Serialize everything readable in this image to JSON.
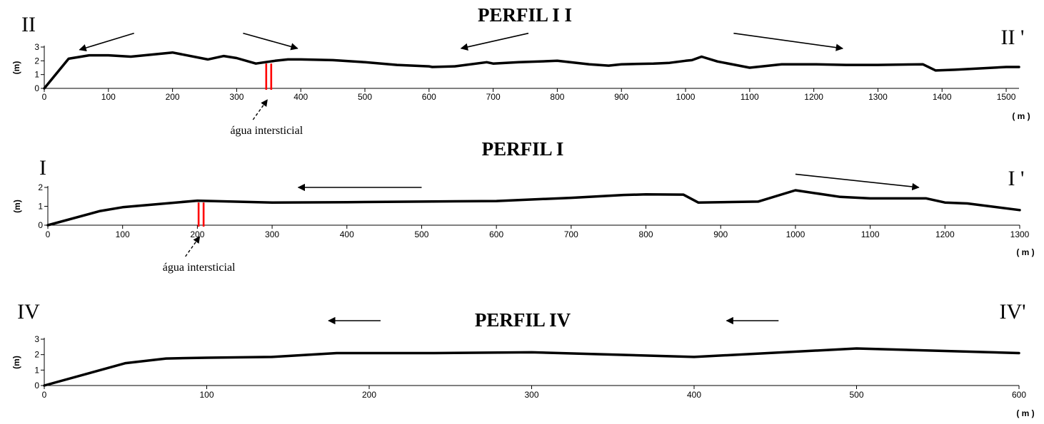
{
  "chart_data": [
    {
      "type": "line",
      "title": "PERFIL I I",
      "start_label": "II",
      "end_label": "II '",
      "ylabel": "(m)",
      "xlabel": "( m )",
      "xlim": [
        0,
        1520
      ],
      "ylim": [
        0,
        3
      ],
      "xticks": [
        0,
        100,
        200,
        300,
        400,
        500,
        600,
        700,
        800,
        900,
        1000,
        1100,
        1200,
        1300,
        1400,
        1500
      ],
      "yticks": [
        0,
        1,
        2,
        3
      ],
      "x": [
        0,
        38,
        70,
        100,
        135,
        200,
        255,
        280,
        300,
        330,
        360,
        380,
        400,
        450,
        500,
        550,
        600,
        605,
        640,
        690,
        700,
        740,
        800,
        850,
        880,
        900,
        950,
        975,
        1000,
        1010,
        1025,
        1050,
        1100,
        1150,
        1200,
        1250,
        1300,
        1370,
        1390,
        1420,
        1500,
        1520
      ],
      "y": [
        0,
        2.15,
        2.4,
        2.4,
        2.3,
        2.6,
        2.1,
        2.35,
        2.2,
        1.8,
        2.0,
        2.1,
        2.1,
        2.05,
        1.9,
        1.7,
        1.6,
        1.55,
        1.6,
        1.9,
        1.8,
        1.9,
        2.0,
        1.75,
        1.65,
        1.75,
        1.8,
        1.85,
        2.0,
        2.05,
        2.3,
        1.95,
        1.5,
        1.75,
        1.75,
        1.7,
        1.7,
        1.75,
        1.3,
        1.35,
        1.55,
        1.55
      ],
      "flow_arrows": [
        {
          "x1": 140,
          "y1": 4.0,
          "x2": 55,
          "y2": 2.8,
          "head": "end"
        },
        {
          "x1": 310,
          "y1": 4.0,
          "x2": 395,
          "y2": 2.9,
          "head": "end"
        },
        {
          "x1": 755,
          "y1": 4.0,
          "x2": 650,
          "y2": 2.9,
          "head": "end"
        },
        {
          "x1": 1075,
          "y1": 4.0,
          "x2": 1245,
          "y2": 2.9,
          "head": "end"
        }
      ],
      "marker_x": 350,
      "marker_label": "água intersticial"
    },
    {
      "type": "line",
      "title": "PERFIL  I",
      "start_label": "I",
      "end_label": "I '",
      "ylabel": "(m)",
      "xlabel": "( m )",
      "xlim": [
        0,
        1300
      ],
      "ylim": [
        0,
        2
      ],
      "xticks": [
        0,
        100,
        200,
        300,
        400,
        500,
        600,
        700,
        800,
        900,
        1000,
        1100,
        1200,
        1300
      ],
      "yticks": [
        0,
        1,
        2
      ],
      "x": [
        0,
        70,
        100,
        200,
        300,
        400,
        500,
        600,
        700,
        770,
        800,
        850,
        870,
        950,
        1000,
        1060,
        1100,
        1175,
        1200,
        1230,
        1300
      ],
      "y": [
        0,
        0.75,
        0.95,
        1.3,
        1.2,
        1.22,
        1.25,
        1.28,
        1.45,
        1.6,
        1.63,
        1.62,
        1.2,
        1.25,
        1.85,
        1.5,
        1.42,
        1.42,
        1.2,
        1.15,
        0.8
      ],
      "flow_arrows": [
        {
          "x1": 500,
          "y1": 2.0,
          "x2": 335,
          "y2": 2.0,
          "head": "end"
        },
        {
          "x1": 1000,
          "y1": 2.7,
          "x2": 1165,
          "y2": 2.0,
          "head": "end"
        }
      ],
      "marker_x": 205,
      "marker_label": "água intersticial"
    },
    {
      "type": "line",
      "title": "PERFIL IV",
      "start_label": "IV",
      "end_label": "IV'",
      "ylabel": "(m)",
      "xlabel": "( m )",
      "xlim": [
        0,
        600
      ],
      "ylim": [
        0,
        3
      ],
      "xticks": [
        0,
        100,
        200,
        300,
        400,
        500,
        600
      ],
      "yticks": [
        0,
        1,
        2,
        3
      ],
      "x": [
        0,
        50,
        75,
        100,
        140,
        180,
        240,
        300,
        400,
        500,
        600
      ],
      "y": [
        0,
        1.45,
        1.75,
        1.8,
        1.85,
        2.1,
        2.1,
        2.15,
        1.85,
        2.4,
        2.1
      ],
      "flow_arrows": [
        {
          "x1": 207,
          "y1": 4.2,
          "x2": 175,
          "y2": 4.2,
          "head": "end"
        },
        {
          "x1": 452,
          "y1": 4.2,
          "x2": 420,
          "y2": 4.2,
          "head": "end"
        }
      ]
    }
  ]
}
